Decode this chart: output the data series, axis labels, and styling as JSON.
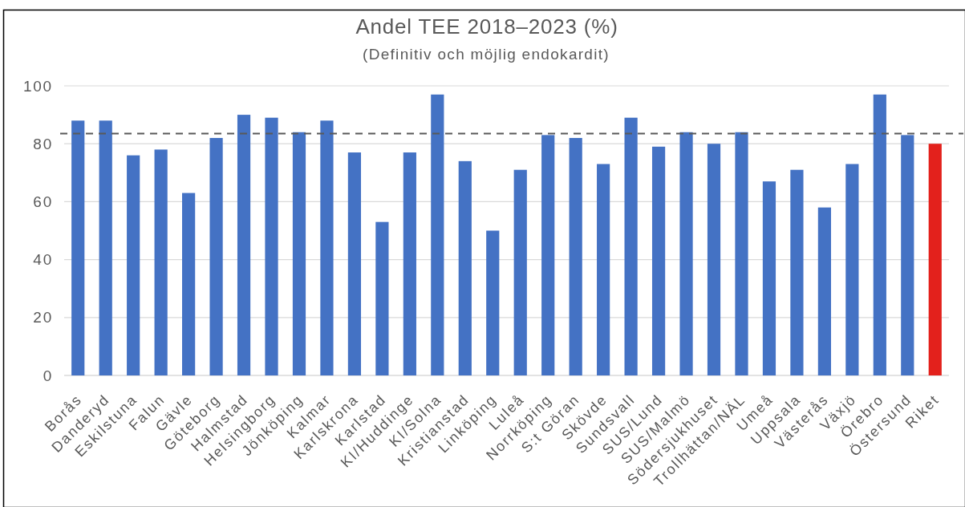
{
  "chart_data": {
    "type": "bar",
    "title": "Andel TEE 2018–2023 (%)",
    "subtitle": "(Definitiv och möjlig endokardit)",
    "categories": [
      "Borås",
      "Danderyd",
      "Eskilstuna",
      "Falun",
      "Gävle",
      "Göteborg",
      "Halmstad",
      "Helsingborg",
      "Jönköping",
      "Kalmar",
      "Karlskrona",
      "Karlstad",
      "KI/Huddinge",
      "KI/Solna",
      "Kristianstad",
      "Linköping",
      "Luleå",
      "Norrköping",
      "S:t Göran",
      "Skövde",
      "Sundsvall",
      "SUS/Lund",
      "SUS/Malmö",
      "Södersjukhuset",
      "Trollhättan/NÄL",
      "Umeå",
      "Uppsala",
      "Västerås",
      "Växjö",
      "Örebro",
      "Östersund",
      "Riket"
    ],
    "values": [
      88,
      88,
      76,
      78,
      63,
      82,
      90,
      89,
      84,
      88,
      77,
      53,
      77,
      97,
      74,
      50,
      71,
      83,
      82,
      73,
      89,
      79,
      84,
      80,
      84,
      67,
      71,
      58,
      73,
      97,
      83,
      80
    ],
    "colors": [
      "#4472c4",
      "#4472c4",
      "#4472c4",
      "#4472c4",
      "#4472c4",
      "#4472c4",
      "#4472c4",
      "#4472c4",
      "#4472c4",
      "#4472c4",
      "#4472c4",
      "#4472c4",
      "#4472c4",
      "#4472c4",
      "#4472c4",
      "#4472c4",
      "#4472c4",
      "#4472c4",
      "#4472c4",
      "#4472c4",
      "#4472c4",
      "#4472c4",
      "#4472c4",
      "#4472c4",
      "#4472c4",
      "#4472c4",
      "#4472c4",
      "#4472c4",
      "#4472c4",
      "#4472c4",
      "#4472c4",
      "#e3211c"
    ],
    "ylim": [
      0,
      100
    ],
    "yticks": [
      0,
      20,
      40,
      60,
      80,
      100
    ],
    "grid": "y",
    "ref_lines": [
      {
        "axis": "y",
        "value": 83.5,
        "color": "#595959",
        "line_style": "dashed"
      }
    ]
  }
}
